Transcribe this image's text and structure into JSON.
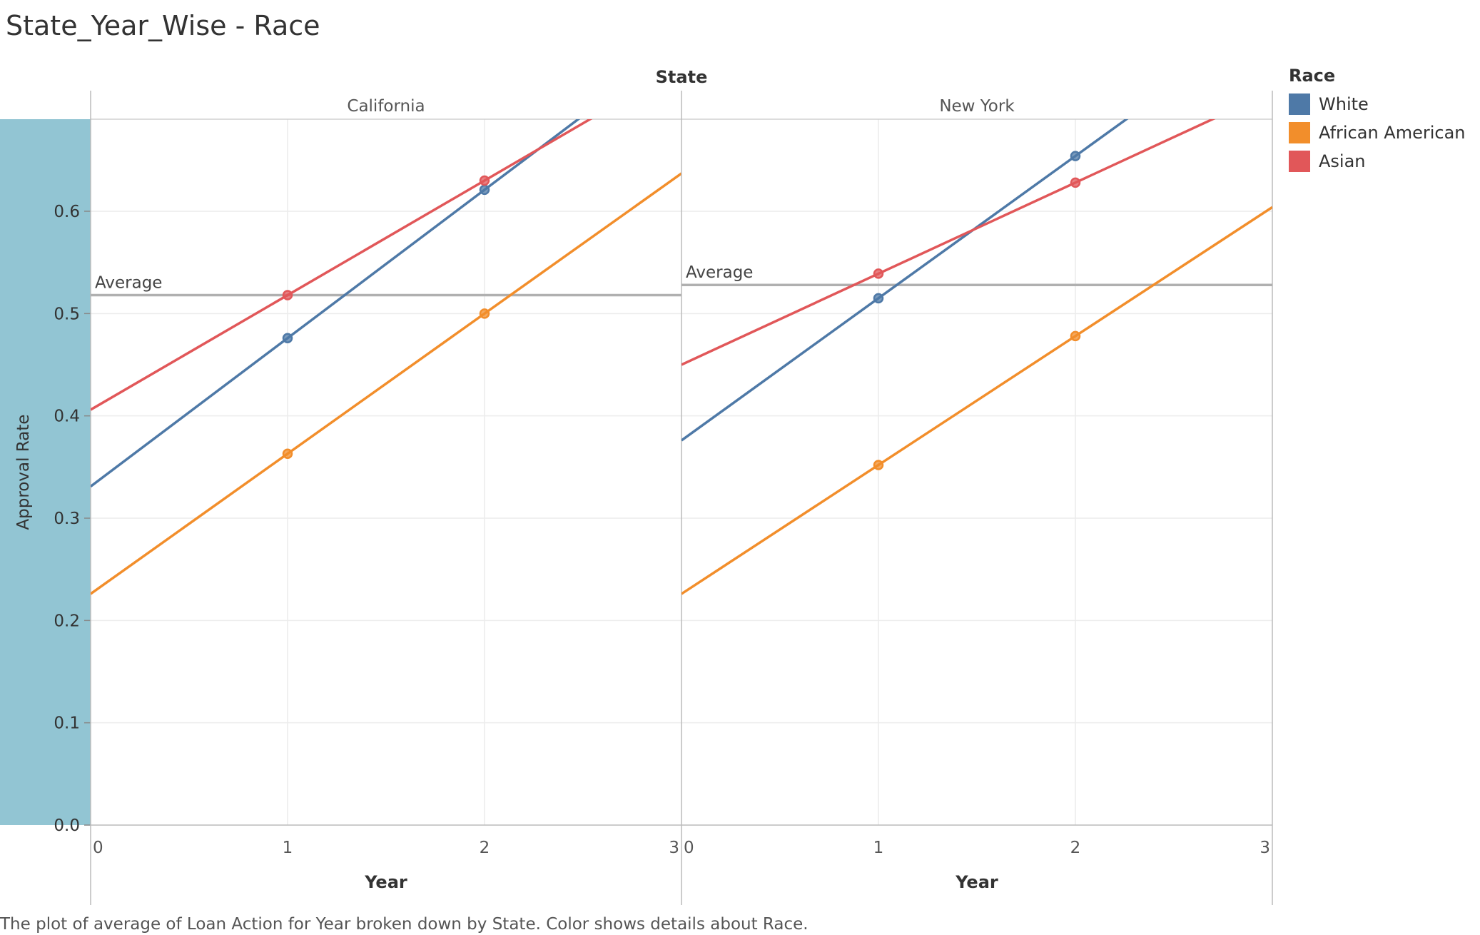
{
  "title": "State_Year_Wise - Race",
  "caption": "The plot of average of Loan Action for Year broken down by State.  Color shows details about Race.",
  "legend": {
    "title": "Race",
    "items": [
      {
        "label": "White",
        "color": "#4e79a7"
      },
      {
        "label": "African American",
        "color": "#f28e2b"
      },
      {
        "label": "Asian",
        "color": "#e15759"
      }
    ]
  },
  "chart_data": {
    "type": "line",
    "column_header": "State",
    "ylabel": "Approval Rate",
    "xlabel": "Year",
    "ylim": [
      0.0,
      0.69
    ],
    "xlim": [
      0,
      3
    ],
    "y_ticks": [
      "0.0",
      "0.1",
      "0.2",
      "0.3",
      "0.4",
      "0.5",
      "0.6"
    ],
    "x_ticks": [
      "0",
      "1",
      "2",
      "3"
    ],
    "reference_line_label": "Average",
    "panels": [
      {
        "state": "California",
        "average": 0.518,
        "series": [
          {
            "name": "White",
            "color": "#4e79a7",
            "points": [
              [
                1,
                0.476
              ],
              [
                2,
                0.621
              ]
            ],
            "trend": {
              "slope": 0.145,
              "intercept": 0.331
            }
          },
          {
            "name": "African American",
            "color": "#f28e2b",
            "points": [
              [
                1,
                0.363
              ],
              [
                2,
                0.5
              ]
            ],
            "trend": {
              "slope": 0.137,
              "intercept": 0.226
            }
          },
          {
            "name": "Asian",
            "color": "#e15759",
            "points": [
              [
                1,
                0.518
              ],
              [
                2,
                0.63
              ]
            ],
            "trend": {
              "slope": 0.112,
              "intercept": 0.406
            }
          }
        ]
      },
      {
        "state": "New York",
        "average": 0.528,
        "series": [
          {
            "name": "White",
            "color": "#4e79a7",
            "points": [
              [
                1,
                0.515
              ],
              [
                2,
                0.654
              ]
            ],
            "trend": {
              "slope": 0.139,
              "intercept": 0.376
            }
          },
          {
            "name": "African American",
            "color": "#f28e2b",
            "points": [
              [
                1,
                0.352
              ],
              [
                2,
                0.478
              ]
            ],
            "trend": {
              "slope": 0.126,
              "intercept": 0.226
            }
          },
          {
            "name": "Asian",
            "color": "#e15759",
            "points": [
              [
                1,
                0.539
              ],
              [
                2,
                0.628
              ]
            ],
            "trend": {
              "slope": 0.089,
              "intercept": 0.45
            }
          }
        ]
      }
    ]
  }
}
